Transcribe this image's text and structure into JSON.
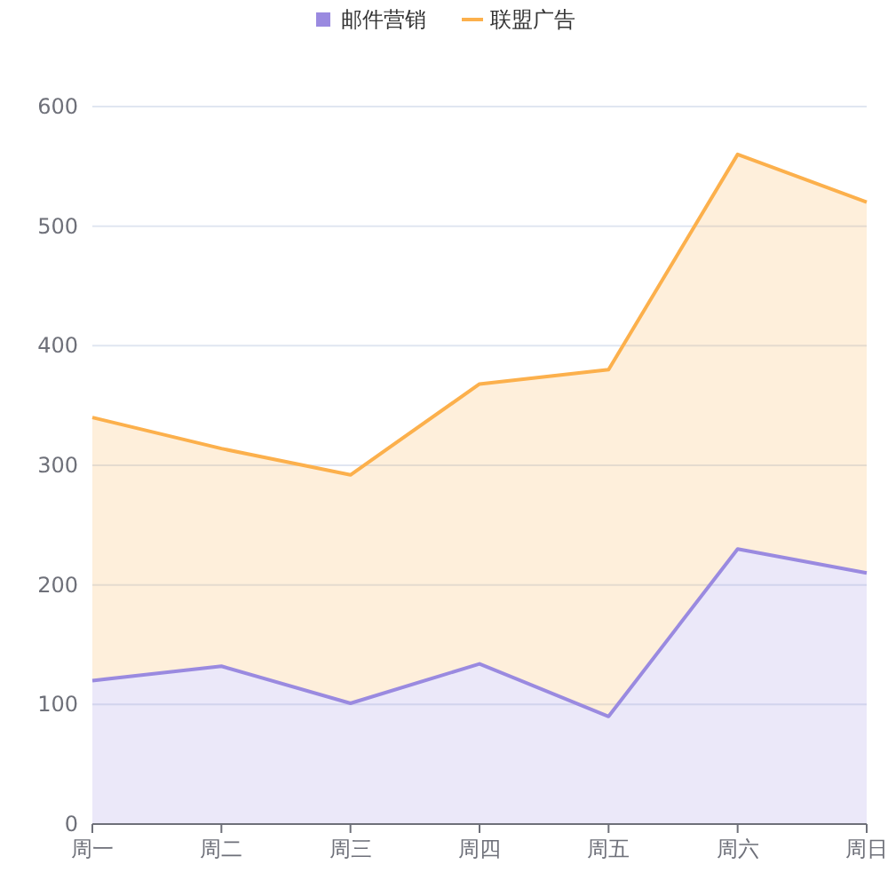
{
  "chart_data": {
    "type": "area",
    "stacked": true,
    "categories": [
      "周一",
      "周二",
      "周三",
      "周四",
      "周五",
      "周六",
      "周日"
    ],
    "series": [
      {
        "name": "邮件营销",
        "color": "#9a8ae0",
        "values": [
          120,
          132,
          101,
          134,
          90,
          230,
          210
        ]
      },
      {
        "name": "联盟广告",
        "color": "#fcb04c",
        "values": [
          220,
          182,
          191,
          234,
          290,
          330,
          310
        ]
      }
    ],
    "ylim": [
      0,
      600
    ],
    "yticks": [
      0,
      100,
      200,
      300,
      400,
      500,
      600
    ],
    "grid": "y",
    "legend": "top"
  }
}
